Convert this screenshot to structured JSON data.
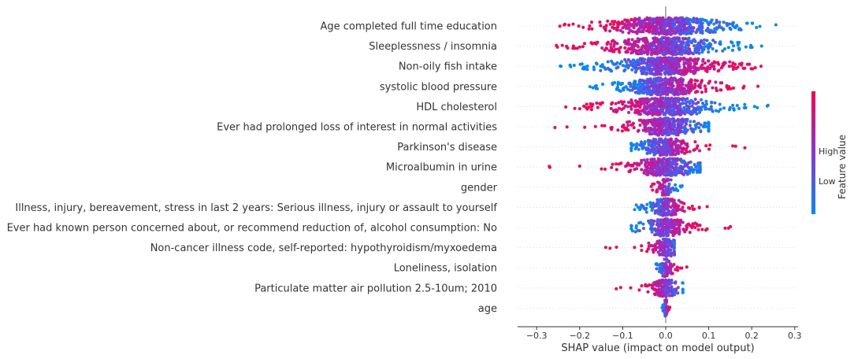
{
  "chart_data": {
    "type": "scatter",
    "subtype": "shap-beeswarm",
    "title": "",
    "xlabel": "SHAP value (impact on model output)",
    "xlim": [
      -0.345,
      0.305
    ],
    "xticks": [
      -0.3,
      -0.2,
      -0.1,
      0.0,
      0.1,
      0.2,
      0.3
    ],
    "xtick_labels": [
      "−0.3",
      "−0.2",
      "−0.1",
      "0.0",
      "0.1",
      "0.2",
      "0.3"
    ],
    "colorbar": {
      "label": "Feature value",
      "high_label": "High",
      "low_label": "Low",
      "low_color": "#008bfb",
      "high_color": "#ff0052"
    },
    "features": [
      {
        "name": "Age completed full time education",
        "min": -0.32,
        "max": 0.26,
        "high_side": "left"
      },
      {
        "name": "Sleeplessness / insomnia",
        "min": -0.28,
        "max": 0.27,
        "high_side": "left"
      },
      {
        "name": "Non-oily fish intake",
        "min": -0.29,
        "max": 0.25,
        "high_side": "right"
      },
      {
        "name": "systolic blood pressure",
        "min": -0.2,
        "max": 0.22,
        "high_side": "right"
      },
      {
        "name": "HDL cholesterol",
        "min": -0.24,
        "max": 0.27,
        "high_side": "left"
      },
      {
        "name": "Ever had prolonged loss of interest in normal activities",
        "min": -0.26,
        "max": 0.1,
        "high_side": "left"
      },
      {
        "name": "Parkinson's disease",
        "min": -0.08,
        "max": 0.2,
        "high_side": "right"
      },
      {
        "name": "Microalbumin in urine",
        "min": -0.28,
        "max": 0.08,
        "high_side": "left"
      },
      {
        "name": "gender",
        "min": -0.05,
        "max": 0.04,
        "high_side": "left"
      },
      {
        "name": "Illness, injury, bereavement, stress in last 2 years: Serious illness, injury or assault to yourself",
        "min": -0.08,
        "max": 0.11,
        "high_side": "right"
      },
      {
        "name": "Ever had known person concerned about, or recommend reduction of, alcohol consumption: No",
        "min": -0.08,
        "max": 0.17,
        "high_side": "right"
      },
      {
        "name": "Non-cancer illness code, self-reported: hypothyroidism/myxoedema",
        "min": -0.14,
        "max": 0.02,
        "high_side": "left"
      },
      {
        "name": "Loneliness, isolation",
        "min": -0.03,
        "max": 0.05,
        "high_side": "right"
      },
      {
        "name": "Particulate matter air pollution 2.5-10um; 2010",
        "min": -0.12,
        "max": 0.04,
        "high_side": "left"
      },
      {
        "name": "age",
        "min": -0.01,
        "max": 0.01,
        "high_side": "right"
      }
    ]
  }
}
